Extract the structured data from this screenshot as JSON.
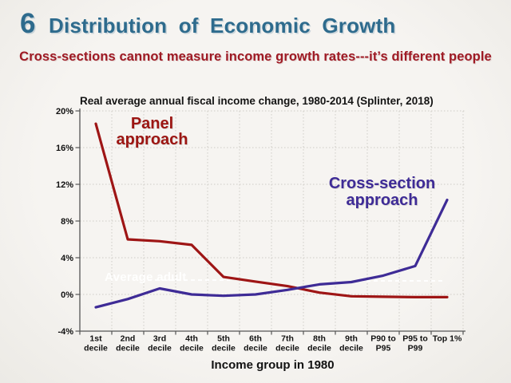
{
  "slide": {
    "number": "6",
    "title": "Distribution of Economic Growth",
    "subtitle": "Cross-sections cannot measure income growth rates---it’s different people"
  },
  "colors": {
    "title_teal": "#2e6b8d",
    "subtitle_red": "#9e1a24",
    "panel_line_red": "#9e1515",
    "cross_line_purple": "#3e2b96",
    "background": "#f3f1ed",
    "gridline": "#cfccc6",
    "axis": "#555555"
  },
  "chart_data": {
    "type": "line",
    "title": "Real average annual fiscal income change, 1980-2014 (Splinter, 2018)",
    "xlabel": "Income group in 1980",
    "ylabel": "",
    "ylim": [
      -4,
      20
    ],
    "grid": "dashed-both",
    "legend_position": "inline-annotations",
    "categories": [
      "1st decile",
      "2nd decile",
      "3rd decile",
      "4th decile",
      "5th decile",
      "6th decile",
      "7th decile",
      "8th decile",
      "9th decile",
      "P90 to P95",
      "P95 to P99",
      "Top 1%"
    ],
    "category_lines": [
      [
        "1st",
        "decile"
      ],
      [
        "2nd",
        "decile"
      ],
      [
        "3rd",
        "decile"
      ],
      [
        "4th",
        "decile"
      ],
      [
        "5th",
        "decile"
      ],
      [
        "6th",
        "decile"
      ],
      [
        "7th",
        "decile"
      ],
      [
        "8th",
        "decile"
      ],
      [
        "9th",
        "decile"
      ],
      [
        "P90 to",
        "P95"
      ],
      [
        "P95 to",
        "P99"
      ],
      [
        "Top 1%",
        ""
      ]
    ],
    "y_ticks": [
      {
        "value": 20,
        "label": "20%"
      },
      {
        "value": 16,
        "label": "16%"
      },
      {
        "value": 12,
        "label": "12%"
      },
      {
        "value": 8,
        "label": "8%"
      },
      {
        "value": 4,
        "label": "4%"
      },
      {
        "value": 0,
        "label": "0%"
      },
      {
        "value": -4,
        "label": "-4%"
      }
    ],
    "series": [
      {
        "name": "Panel approach",
        "color": "#9e1515",
        "values": [
          18.6,
          6.0,
          5.8,
          5.4,
          1.9,
          1.4,
          0.9,
          0.2,
          -0.2,
          -0.25,
          -0.3,
          -0.3
        ]
      },
      {
        "name": "Cross-section approach",
        "color": "#3e2b96",
        "values": [
          -1.4,
          -0.5,
          0.65,
          0.0,
          -0.15,
          0.0,
          0.5,
          1.1,
          1.35,
          2.05,
          3.1,
          10.3
        ]
      }
    ],
    "hidden_annotation": {
      "label": "Average adult"
    }
  }
}
